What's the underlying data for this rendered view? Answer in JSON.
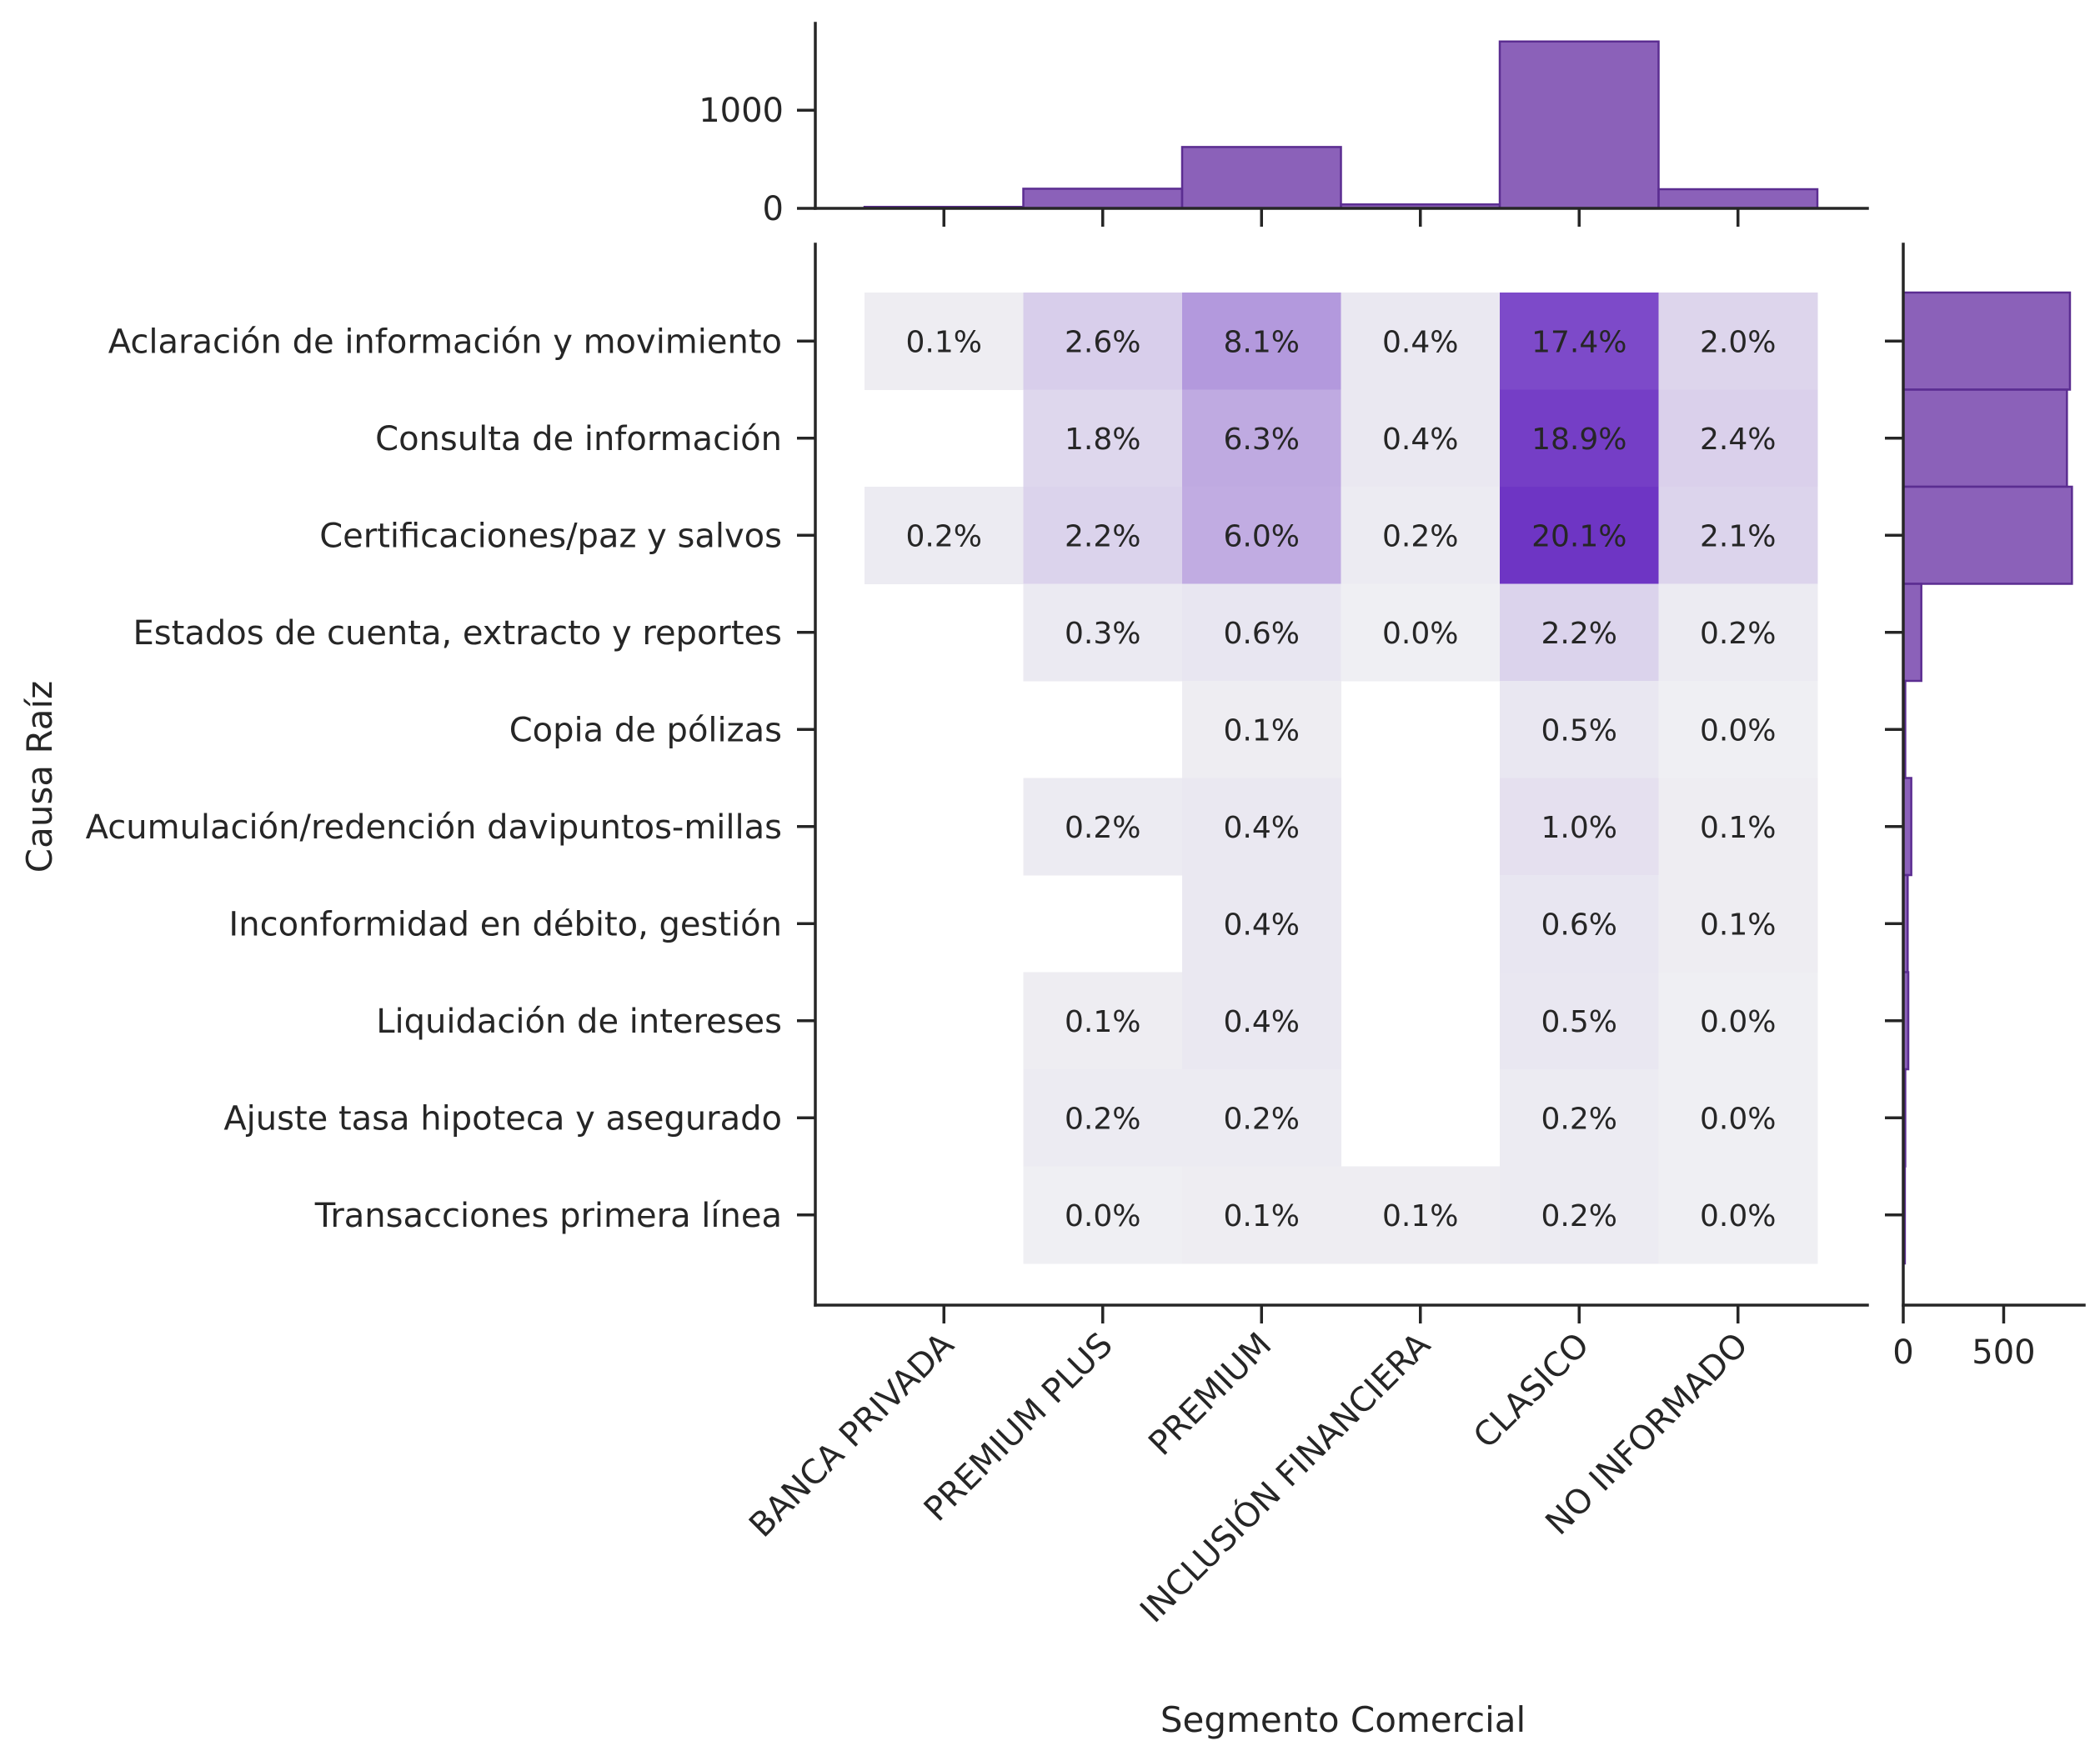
{
  "chart_data": {
    "type": "heatmap",
    "xlabel": "Segmento Comercial",
    "ylabel": "Causa Raíz",
    "x_categories": [
      "BANCA PRIVADA",
      "PREMIUM PLUS",
      "PREMIUM",
      "INCLUSIÓN FINANCIERA",
      "CLASICO",
      "NO INFORMADO"
    ],
    "y_categories": [
      "Aclaración de información y movimiento",
      "Consulta de información",
      "Certificaciones/paz y salvos",
      "Estados de cuenta, extracto y reportes",
      "Copia de pólizas",
      "Acumulación/redención davipuntos-millas",
      "Inconformidad en débito, gestión ",
      "Liquidación de intereses",
      "Ajuste tasa hipoteca y asegurado",
      "Transacciones primera línea"
    ],
    "cells": [
      [
        "0.1%",
        "2.6%",
        "8.1%",
        "0.4%",
        "17.4%",
        "2.0%"
      ],
      [
        null,
        "1.8%",
        "6.3%",
        "0.4%",
        "18.9%",
        "2.4%"
      ],
      [
        "0.2%",
        "2.2%",
        "6.0%",
        "0.2%",
        "20.1%",
        "2.1%"
      ],
      [
        null,
        "0.3%",
        "0.6%",
        "0.0%",
        "2.2%",
        "0.2%"
      ],
      [
        null,
        null,
        "0.1%",
        null,
        "0.5%",
        "0.0%"
      ],
      [
        null,
        "0.2%",
        "0.4%",
        null,
        "1.0%",
        "0.1%"
      ],
      [
        null,
        null,
        "0.4%",
        null,
        "0.6%",
        "0.1%"
      ],
      [
        null,
        "0.1%",
        "0.4%",
        null,
        "0.5%",
        "0.0%"
      ],
      [
        null,
        "0.2%",
        "0.2%",
        null,
        "0.2%",
        "0.0%"
      ],
      [
        null,
        "0.0%",
        "0.1%",
        "0.1%",
        "0.2%",
        "0.0%"
      ]
    ],
    "top_marginal": {
      "type": "histogram-step",
      "yticks": [
        0,
        1000
      ],
      "ylim": [
        0,
        1800
      ],
      "values": [
        15,
        200,
        625,
        40,
        1700,
        195
      ]
    },
    "right_marginal": {
      "type": "histogram-step",
      "xticks": [
        0,
        500
      ],
      "xlim": [
        0,
        880
      ],
      "values": [
        830,
        815,
        840,
        90,
        10,
        40,
        22,
        25,
        10,
        8
      ]
    },
    "colors": {
      "bar_fill": "#7B4BAF",
      "bar_edge": "#5B2D91",
      "cell_max": "#6E35C4",
      "cell_min": "#EFEFF3"
    },
    "grid": false
  }
}
